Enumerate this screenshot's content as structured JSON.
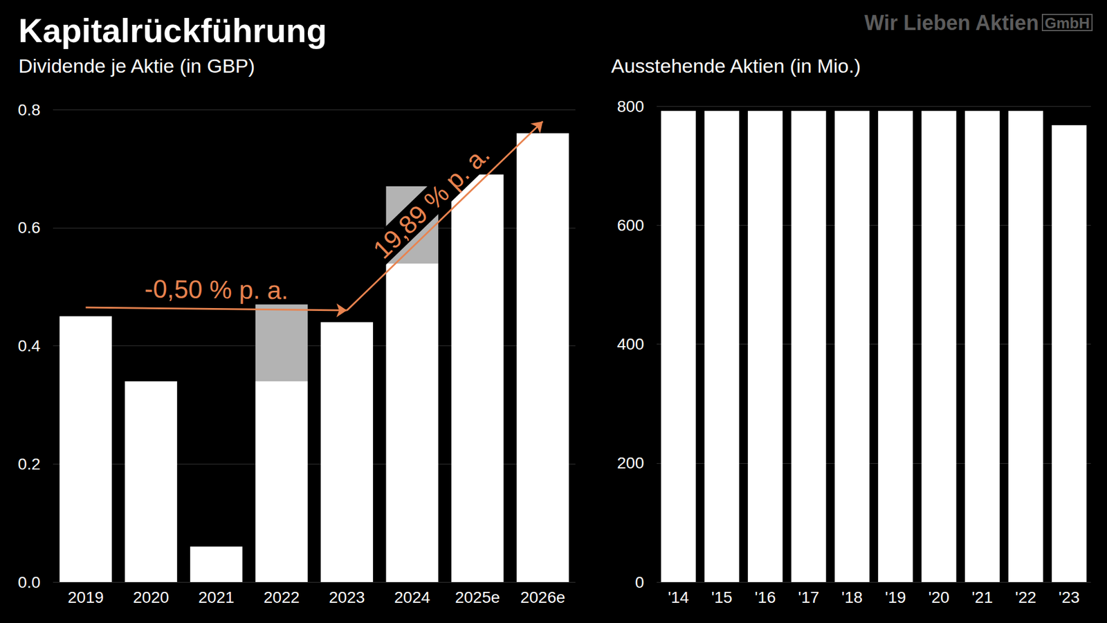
{
  "title": "Kapitalrückführung",
  "brand": {
    "text": "Wir Lieben Aktien",
    "badge": "GmbH"
  },
  "chart_data": [
    {
      "type": "bar",
      "title": "Dividende je Aktie (in GBP)",
      "categories": [
        "2019",
        "2020",
        "2021",
        "2022",
        "2023",
        "2024",
        "2025e",
        "2026e"
      ],
      "series": [
        {
          "color": "#ffffff",
          "values": [
            0.45,
            0.34,
            0.06,
            0.34,
            0.44,
            0.54,
            0.69,
            0.76
          ]
        },
        {
          "color": "#b3b3b3",
          "values": [
            null,
            null,
            null,
            0.13,
            null,
            0.13,
            null,
            null
          ]
        }
      ],
      "stacked": true,
      "ylim": [
        0,
        0.8
      ],
      "yticks": [
        {
          "value": 0,
          "label": "0.0"
        },
        0.2,
        0.4,
        0.6,
        0.8
      ],
      "grid": true,
      "annotations": [
        {
          "text": "-0,50 % p. a.",
          "from": [
            "2019",
            0.465
          ],
          "to": [
            "2023",
            0.46
          ],
          "color": "#e8834f"
        },
        {
          "text": "19,89 % p. a.",
          "from": [
            "2023",
            0.46
          ],
          "to": [
            "2026e",
            0.78
          ],
          "color": "#e8834f"
        }
      ]
    },
    {
      "type": "bar",
      "title": "Ausstehende Aktien (in Mio.)",
      "categories": [
        "'14",
        "'15",
        "'16",
        "'17",
        "'18",
        "'19",
        "'20",
        "'21",
        "'22",
        "'23"
      ],
      "values": [
        792,
        792,
        792,
        792,
        792,
        792,
        792,
        792,
        792,
        768
      ],
      "color": "#ffffff",
      "ylim": [
        0,
        800
      ],
      "yticks": [
        0,
        200,
        400,
        600,
        800
      ],
      "grid": true
    }
  ]
}
